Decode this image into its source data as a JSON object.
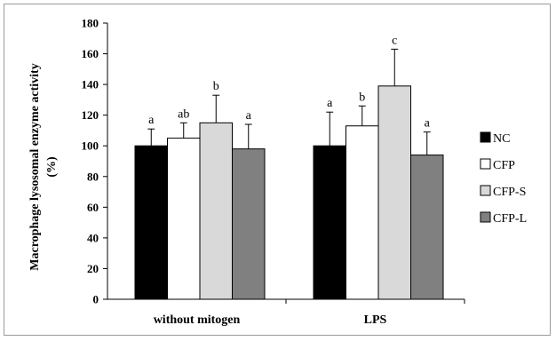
{
  "chart_data": {
    "type": "bar",
    "ylabel_line1": "Macrophage lysosomal enzyme activity",
    "ylabel_line2": "(%)",
    "ylim": [
      0,
      180
    ],
    "yticks": [
      0,
      20,
      40,
      60,
      80,
      100,
      120,
      140,
      160,
      180
    ],
    "grid": false,
    "legend_position": "right",
    "categories": [
      "without mitogen",
      "LPS"
    ],
    "series": [
      {
        "name": "NC",
        "color": "#000000",
        "values": [
          100,
          100
        ],
        "errors": [
          11,
          22
        ],
        "labels": [
          "a",
          "a"
        ]
      },
      {
        "name": "CFP",
        "color": "#ffffff",
        "values": [
          105,
          113
        ],
        "errors": [
          10,
          13
        ],
        "labels": [
          "ab",
          "b"
        ]
      },
      {
        "name": "CFP-S",
        "color": "#d9d9d9",
        "values": [
          115,
          139
        ],
        "errors": [
          18,
          24
        ],
        "labels": [
          "b",
          "c"
        ]
      },
      {
        "name": "CFP-L",
        "color": "#808080",
        "values": [
          98,
          94
        ],
        "errors": [
          16,
          15
        ],
        "labels": [
          "a",
          "a"
        ]
      }
    ]
  }
}
